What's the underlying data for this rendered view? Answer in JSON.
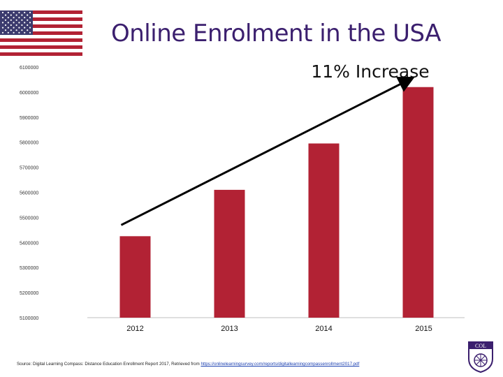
{
  "slide": {
    "title": "Online Enrolment in the USA",
    "annotation": "11% Increase",
    "source_prefix": "Source: Digital Learning Compass: Distance Education Enrollment Report 2017, Retrieved from ",
    "source_link": "https://onlinelearningsurvey.com/reports/digitallearningcompassenrollment2017.pdf",
    "logo_text": "COL"
  },
  "chart_data": {
    "type": "bar",
    "title": "",
    "xlabel": "",
    "ylabel": "",
    "categories": [
      "2012",
      "2013",
      "2014",
      "2015"
    ],
    "values": [
      5425000,
      5610000,
      5795000,
      6020000
    ],
    "ylim": [
      5100000,
      6100000
    ],
    "yticks": [
      6100000,
      6000000,
      5900000,
      5800000,
      5700000,
      5600000,
      5500000,
      5400000,
      5300000,
      5200000,
      5100000
    ],
    "ytick_labels": [
      "6100000",
      "6000000",
      "5900000",
      "5800000",
      "5700000",
      "5600000",
      "5500000",
      "5400000",
      "5300000",
      "5200000",
      "5100000"
    ],
    "grid": false,
    "legend": "none",
    "bar_color": "#b22234",
    "trend_arrow": {
      "from_category": "2012",
      "to_category": "2015"
    }
  },
  "colors": {
    "title": "#3b1f6e",
    "bar": "#b22234",
    "axis": "#bfbfbf",
    "arrow": "#000000",
    "flag_red": "#b22234",
    "flag_blue": "#3c3b6e"
  },
  "icons": {
    "flag": "usa-flag-icon",
    "logo": "col-logo-icon"
  }
}
